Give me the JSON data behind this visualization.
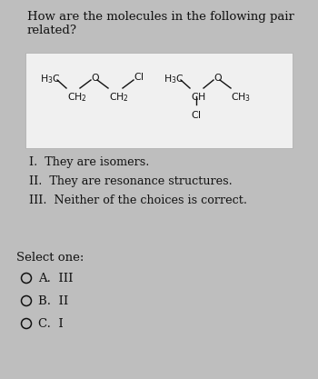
{
  "background_color": "#bebebe",
  "panel_color": "#e8e8e8",
  "question_line1": "How are the molecules in the following pair",
  "question_line2": "related?",
  "choices": [
    "I.  They are isomers.",
    "II.  They are resonance structures.",
    "III.  Neither of the choices is correct."
  ],
  "select_label": "Select one:",
  "options": [
    {
      "label": "A.",
      "value": "III"
    },
    {
      "label": "B.",
      "value": "II"
    },
    {
      "label": "C.",
      "value": "I"
    }
  ],
  "text_color": "#111111",
  "mol_color": "#111111",
  "white_panel": "#f0f0f0",
  "font_size_q": 9.5,
  "font_size_choices": 9.2,
  "font_size_select": 9.5,
  "font_size_opts": 9.5,
  "font_size_mol": 7.8
}
